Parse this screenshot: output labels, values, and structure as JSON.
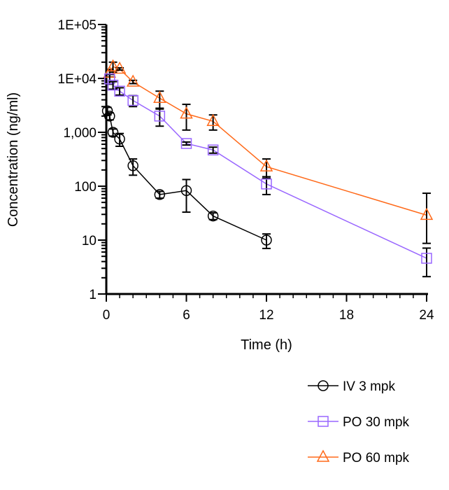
{
  "chart_data": {
    "type": "line",
    "title": "",
    "xlabel": "Time (h)",
    "ylabel": "Concentration (ng/ml)",
    "yscale": "log",
    "xlim": [
      0,
      24
    ],
    "ylim": [
      1,
      100000
    ],
    "xticks": [
      0,
      6,
      12,
      18,
      24
    ],
    "xtick_labels": [
      "0",
      "6",
      "12",
      "18",
      "24"
    ],
    "yticks": [
      1,
      10,
      100,
      1000,
      10000,
      100000
    ],
    "ytick_labels": [
      "1",
      "10",
      "100",
      "1,000",
      "1E+04",
      "1E+05"
    ],
    "legend_position": "bottom-right",
    "series": [
      {
        "name": "IV 3 mpk",
        "color": "#000000",
        "marker": "circle",
        "x": [
          0.083,
          0.25,
          0.5,
          1,
          2,
          4,
          6,
          8,
          12
        ],
        "y": [
          2500,
          2000,
          1000,
          750,
          240,
          70,
          83,
          28,
          10
        ],
        "err": [
          400,
          300,
          150,
          200,
          80,
          10,
          50,
          4,
          3
        ]
      },
      {
        "name": "PO 30 mpk",
        "color": "#9966ff",
        "marker": "square",
        "x": [
          0.25,
          0.5,
          1,
          2,
          4,
          6,
          8,
          12,
          24
        ],
        "y": [
          9800,
          7500,
          5800,
          3900,
          2000,
          620,
          470,
          110,
          4.6
        ],
        "err": [
          2000,
          1200,
          900,
          900,
          700,
          40,
          60,
          40,
          2.5
        ]
      },
      {
        "name": "PO 60 mpk",
        "color": "#ff6a1a",
        "marker": "triangle",
        "x": [
          0.25,
          0.5,
          1,
          2,
          4,
          6,
          8,
          12,
          24
        ],
        "y": [
          12600,
          16500,
          15000,
          8600,
          4300,
          2200,
          1600,
          230,
          29
        ],
        "err": [
          2000,
          3500,
          700,
          600,
          1500,
          1100,
          500,
          90,
          45
        ]
      }
    ]
  }
}
